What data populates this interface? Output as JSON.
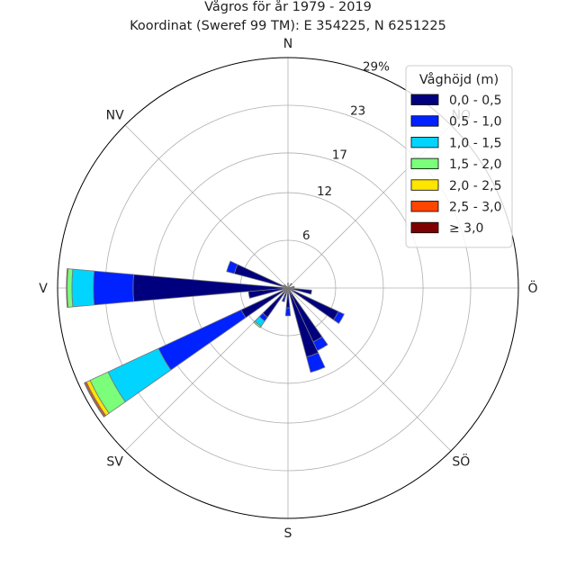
{
  "chart_data": {
    "type": "windrose",
    "title": "Vågros för år 1979 - 2019",
    "subtitle": "Koordinat (Sweref 99 TM): E 354225, N 6251225",
    "direction_labels": [
      {
        "label": "N",
        "angle_deg": 0
      },
      {
        "label": "NO",
        "angle_deg": 45
      },
      {
        "label": "Ö",
        "angle_deg": 90
      },
      {
        "label": "SÖ",
        "angle_deg": 135
      },
      {
        "label": "S",
        "angle_deg": 180
      },
      {
        "label": "SV",
        "angle_deg": 225
      },
      {
        "label": "V",
        "angle_deg": 270
      },
      {
        "label": "NV",
        "angle_deg": 315
      }
    ],
    "radial_ticks": [
      {
        "value": 6,
        "label": "6"
      },
      {
        "value": 12,
        "label": "12"
      },
      {
        "value": 17,
        "label": "17"
      },
      {
        "value": 23,
        "label": "23"
      },
      {
        "value": 29,
        "label": "29%"
      }
    ],
    "rmax": 29,
    "grid": true,
    "sector_width_deg": 10,
    "legend": {
      "title": "Våghöjd (m)",
      "placement": "top-right",
      "entries": [
        {
          "label": "0,0 - 0,5",
          "color": "#00007f"
        },
        {
          "label": "0,5 - 1,0",
          "color": "#0022ff"
        },
        {
          "label": "1,0 - 1,5",
          "color": "#00d4ff"
        },
        {
          "label": "1,5 - 2,0",
          "color": "#7bff7b"
        },
        {
          "label": "2,0 - 2,5",
          "color": "#ffe500"
        },
        {
          "label": "2,5 - 3,0",
          "color": "#ff4500"
        },
        {
          "label": "≥ 3,0",
          "color": "#7f0000"
        }
      ]
    },
    "sectors": [
      {
        "direction_deg": 0,
        "values": [
          0.6,
          0,
          0,
          0,
          0,
          0,
          0
        ]
      },
      {
        "direction_deg": 40,
        "values": [
          0.7,
          0,
          0,
          0,
          0,
          0,
          0
        ]
      },
      {
        "direction_deg": 80,
        "values": [
          0.8,
          0,
          0,
          0,
          0,
          0,
          0
        ]
      },
      {
        "direction_deg": 100,
        "values": [
          3.0,
          0,
          0,
          0,
          0,
          0,
          0
        ]
      },
      {
        "direction_deg": 120,
        "values": [
          7.0,
          0.8,
          0,
          0,
          0,
          0,
          0
        ]
      },
      {
        "direction_deg": 150,
        "values": [
          7.5,
          1.2,
          0,
          0,
          0,
          0,
          0
        ]
      },
      {
        "direction_deg": 160,
        "values": [
          9.0,
          2.0,
          0,
          0,
          0,
          0,
          0
        ]
      },
      {
        "direction_deg": 180,
        "values": [
          2.5,
          1.0,
          0,
          0,
          0,
          0,
          0
        ]
      },
      {
        "direction_deg": 200,
        "values": [
          1.2,
          0.6,
          0,
          0,
          0,
          0,
          0
        ]
      },
      {
        "direction_deg": 220,
        "values": [
          4.5,
          0.6,
          0.8,
          0.2,
          0,
          0,
          0
        ]
      },
      {
        "direction_deg": 240,
        "values": [
          6.5,
          11.5,
          7.0,
          2.5,
          0.5,
          0.2,
          0.1
        ]
      },
      {
        "direction_deg": 260,
        "values": [
          5.0,
          0,
          0,
          0,
          0,
          0,
          0
        ]
      },
      {
        "direction_deg": 270,
        "values": [
          19.5,
          5.0,
          2.7,
          0.6,
          0,
          0,
          0.1
        ]
      },
      {
        "direction_deg": 290,
        "values": [
          7.0,
          1.0,
          0,
          0,
          0,
          0,
          0
        ]
      },
      {
        "direction_deg": 310,
        "values": [
          0.6,
          0,
          0,
          0,
          0,
          0,
          0
        ]
      }
    ]
  }
}
